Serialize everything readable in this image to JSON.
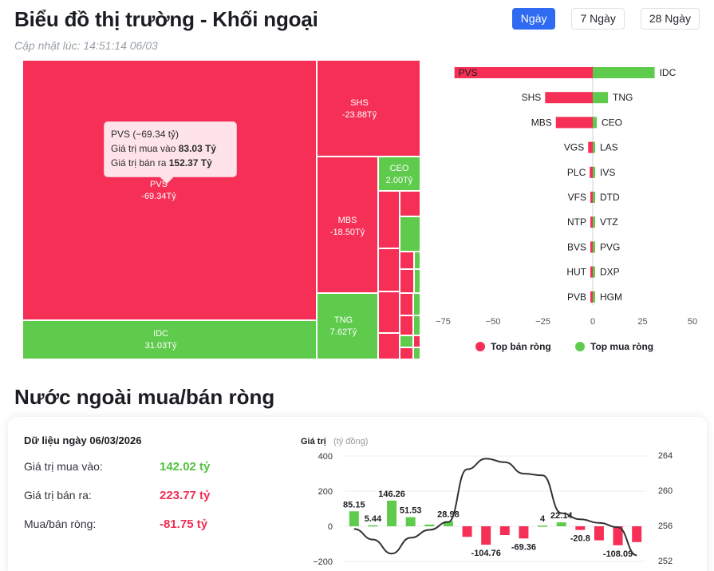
{
  "header": {
    "title": "Biểu đồ thị trường - Khối ngoại",
    "updated": "Cập nhật lúc: 14:51:14 06/03"
  },
  "tabs": [
    {
      "label": "Ngày",
      "active": true
    },
    {
      "label": "7 Ngày",
      "active": false
    },
    {
      "label": "28 Ngày",
      "active": false
    }
  ],
  "treemap": {
    "cells": [
      {
        "ticker": "PVS",
        "value": "-69.34Tỷ",
        "color": "red"
      },
      {
        "ticker": "IDC",
        "value": "31.03Tỷ",
        "color": "green"
      },
      {
        "ticker": "SHS",
        "value": "-23.88Tỷ",
        "color": "red"
      },
      {
        "ticker": "MBS",
        "value": "-18.50Tỷ",
        "color": "red"
      },
      {
        "ticker": "TNG",
        "value": "7.62Tỷ",
        "color": "green"
      },
      {
        "ticker": "CEO",
        "value": "2.00Tỷ",
        "color": "green"
      }
    ],
    "tooltip": {
      "title": "PVS (−69.34 tỷ)",
      "buy_label": "Giá trị mua vào",
      "buy_value": "83.03 Tỷ",
      "sell_label": "Giá trị bán ra",
      "sell_value": "152.37 Tỷ"
    }
  },
  "chart_data": [
    {
      "type": "bar",
      "orientation": "horizontal",
      "title": "",
      "x_ticks": [
        -75,
        -50,
        -25,
        0,
        25,
        50
      ],
      "xlim": [
        -75,
        50
      ],
      "series": [
        {
          "name": "Top bán ròng",
          "color": "#f52f56",
          "categories": [
            "PVS",
            "SHS",
            "MBS",
            "VGS",
            "PLC",
            "VFS",
            "NTP",
            "BVS",
            "HUT",
            "PVB"
          ],
          "values": [
            -69.34,
            -23.88,
            -18.5,
            -2.3,
            -1.5,
            -1.0,
            -1.0,
            -1.0,
            -1.0,
            -0.8
          ]
        },
        {
          "name": "Top mua ròng",
          "color": "#5fcb4c",
          "categories": [
            "IDC",
            "TNG",
            "CEO",
            "LAS",
            "IVS",
            "DTD",
            "VTZ",
            "PVG",
            "DXP",
            "HGM"
          ],
          "values": [
            31.03,
            7.62,
            2.0,
            0.8,
            0.4,
            0.3,
            0.3,
            0.3,
            0.2,
            0.2
          ]
        }
      ],
      "legend": "bottom"
    },
    {
      "type": "bar+line",
      "ylabel": "Giá trị",
      "ylabel_unit": "(tỷ đồng)",
      "y_ticks": [
        400,
        200,
        0,
        -200
      ],
      "y2_ticks": [
        264,
        260,
        256,
        252
      ],
      "bars": [
        85.15,
        5.44,
        146.26,
        51.53,
        10,
        28.98,
        -60,
        -104.76,
        -50,
        -69.36,
        4,
        22.14,
        -20.8,
        -80,
        -108.09,
        -90
      ],
      "bar_labels": [
        "85.15",
        "5.44",
        "146.26",
        "51.53",
        "",
        "28.98",
        "",
        "-104.76",
        "",
        "-69.36",
        "4",
        "22.14",
        "-20.8",
        "",
        "-108.09",
        ""
      ],
      "line": [
        255.6,
        254.4,
        252.8,
        254.6,
        255.5,
        256.4,
        262.4,
        263.6,
        263.2,
        261.9,
        261.7,
        257.4,
        256.7,
        256.3,
        255.8,
        252.6
      ]
    }
  ],
  "bars_legend": {
    "sell": "Top bán ròng",
    "buy": "Top mua ròng"
  },
  "net_section": {
    "title": "Nước ngoài mua/bán ròng",
    "data_heading": "Dữ liệu ngày 06/03/2026",
    "buy_label": "Giá trị mua vào:",
    "buy_value": "142.02 tỷ",
    "sell_label": "Giá trị bán ra:",
    "sell_value": "223.77 tỷ",
    "net_label": "Mua/bán ròng:",
    "net_value": "-81.75 tỷ"
  },
  "combo": {
    "axis_label": "Giá trị",
    "axis_unit": "(tỷ đồng)"
  }
}
